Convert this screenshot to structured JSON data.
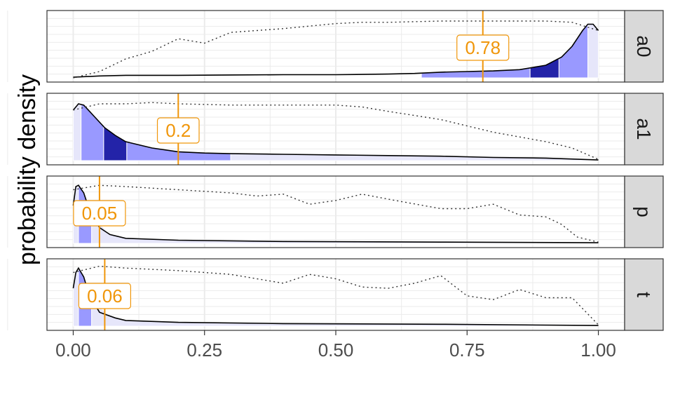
{
  "chart_data": {
    "type": "area",
    "ylabel": "probability density",
    "xlabel": "",
    "xlim": [
      -0.05,
      1.05
    ],
    "x_ticks": [
      {
        "value": 0.0,
        "label": "0.00"
      },
      {
        "value": 0.25,
        "label": "0.25"
      },
      {
        "value": 0.5,
        "label": "0.50"
      },
      {
        "value": 0.75,
        "label": "0.75"
      },
      {
        "value": 1.0,
        "label": "1.00"
      }
    ],
    "colors": {
      "light": "#e6e6fa",
      "mid": "#9999ff",
      "dark": "#2323a8",
      "median": "#f0960a",
      "strip_bg": "#d9d9d9",
      "grid": "#ebebeb"
    },
    "panels": [
      {
        "label": "a0",
        "median": 0.78,
        "median_label": "0.78",
        "ymax": 1.0,
        "density": [
          [
            0.0,
            0.01
          ],
          [
            0.05,
            0.03
          ],
          [
            0.1,
            0.04
          ],
          [
            0.2,
            0.04
          ],
          [
            0.3,
            0.045
          ],
          [
            0.4,
            0.05
          ],
          [
            0.5,
            0.05
          ],
          [
            0.6,
            0.06
          ],
          [
            0.65,
            0.07
          ],
          [
            0.7,
            0.09
          ],
          [
            0.75,
            0.1
          ],
          [
            0.8,
            0.11
          ],
          [
            0.85,
            0.13
          ],
          [
            0.9,
            0.2
          ],
          [
            0.93,
            0.33
          ],
          [
            0.95,
            0.5
          ],
          [
            0.97,
            0.75
          ],
          [
            0.98,
            0.85
          ],
          [
            0.99,
            0.85
          ],
          [
            1.0,
            0.75
          ]
        ],
        "cumulative": [
          [
            0.0,
            0.0
          ],
          [
            0.05,
            0.1
          ],
          [
            0.1,
            0.3
          ],
          [
            0.15,
            0.42
          ],
          [
            0.2,
            0.62
          ],
          [
            0.25,
            0.55
          ],
          [
            0.3,
            0.72
          ],
          [
            0.35,
            0.75
          ],
          [
            0.4,
            0.78
          ],
          [
            0.45,
            0.82
          ],
          [
            0.5,
            0.86
          ],
          [
            0.55,
            0.88
          ],
          [
            0.6,
            0.88
          ],
          [
            0.7,
            0.9
          ],
          [
            0.8,
            0.9
          ],
          [
            0.9,
            0.9
          ],
          [
            0.95,
            0.88
          ],
          [
            1.0,
            0.75
          ]
        ],
        "bands": [
          {
            "from": 0.663,
            "to": 0.87,
            "shade": "mid"
          },
          {
            "from": 0.87,
            "to": 0.925,
            "shade": "dark"
          },
          {
            "from": 0.925,
            "to": 0.98,
            "shade": "mid"
          },
          {
            "from": 0.98,
            "to": 1.0,
            "shade": "light"
          }
        ]
      },
      {
        "label": "a1",
        "median": 0.2,
        "median_label": "0.2",
        "ymax": 1.0,
        "density": [
          [
            0.0,
            0.8
          ],
          [
            0.01,
            0.9
          ],
          [
            0.02,
            0.88
          ],
          [
            0.04,
            0.7
          ],
          [
            0.06,
            0.52
          ],
          [
            0.08,
            0.4
          ],
          [
            0.1,
            0.3
          ],
          [
            0.15,
            0.2
          ],
          [
            0.2,
            0.14
          ],
          [
            0.25,
            0.12
          ],
          [
            0.3,
            0.11
          ],
          [
            0.4,
            0.1
          ],
          [
            0.5,
            0.09
          ],
          [
            0.6,
            0.08
          ],
          [
            0.7,
            0.07
          ],
          [
            0.8,
            0.05
          ],
          [
            0.9,
            0.04
          ],
          [
            1.0,
            0.01
          ]
        ],
        "cumulative": [
          [
            0.0,
            0.8
          ],
          [
            0.05,
            0.9
          ],
          [
            0.1,
            0.9
          ],
          [
            0.15,
            0.92
          ],
          [
            0.2,
            0.9
          ],
          [
            0.3,
            0.88
          ],
          [
            0.4,
            0.88
          ],
          [
            0.5,
            0.88
          ],
          [
            0.55,
            0.85
          ],
          [
            0.6,
            0.78
          ],
          [
            0.7,
            0.65
          ],
          [
            0.8,
            0.45
          ],
          [
            0.9,
            0.3
          ],
          [
            0.95,
            0.2
          ],
          [
            1.0,
            0.02
          ]
        ],
        "bands": [
          {
            "from": 0.0,
            "to": 0.015,
            "shade": "light"
          },
          {
            "from": 0.015,
            "to": 0.058,
            "shade": "mid"
          },
          {
            "from": 0.058,
            "to": 0.102,
            "shade": "dark"
          },
          {
            "from": 0.102,
            "to": 0.3,
            "shade": "mid"
          },
          {
            "from": 0.3,
            "to": 1.0,
            "shade": "light"
          }
        ]
      },
      {
        "label": "p",
        "median": 0.05,
        "median_label": "0.05",
        "ymax": 1.0,
        "density": [
          [
            0.0,
            0.6
          ],
          [
            0.005,
            0.9
          ],
          [
            0.01,
            0.92
          ],
          [
            0.02,
            0.8
          ],
          [
            0.03,
            0.55
          ],
          [
            0.05,
            0.25
          ],
          [
            0.07,
            0.14
          ],
          [
            0.1,
            0.08
          ],
          [
            0.2,
            0.05
          ],
          [
            0.4,
            0.03
          ],
          [
            0.7,
            0.02
          ],
          [
            1.0,
            0.01
          ]
        ],
        "cumulative": [
          [
            0.0,
            0.85
          ],
          [
            0.05,
            0.92
          ],
          [
            0.1,
            0.9
          ],
          [
            0.2,
            0.85
          ],
          [
            0.3,
            0.8
          ],
          [
            0.35,
            0.75
          ],
          [
            0.4,
            0.78
          ],
          [
            0.45,
            0.62
          ],
          [
            0.5,
            0.68
          ],
          [
            0.55,
            0.78
          ],
          [
            0.6,
            0.7
          ],
          [
            0.7,
            0.55
          ],
          [
            0.75,
            0.55
          ],
          [
            0.8,
            0.62
          ],
          [
            0.85,
            0.45
          ],
          [
            0.9,
            0.42
          ],
          [
            0.93,
            0.3
          ],
          [
            0.96,
            0.1
          ],
          [
            1.0,
            0.02
          ]
        ],
        "bands": [
          {
            "from": 0.0,
            "to": 0.01,
            "shade": "light"
          },
          {
            "from": 0.01,
            "to": 0.035,
            "shade": "mid"
          },
          {
            "from": 0.035,
            "to": 1.0,
            "shade": "light"
          }
        ]
      },
      {
        "label": "t",
        "median": 0.06,
        "median_label": "0.06",
        "ymax": 1.0,
        "density": [
          [
            0.0,
            0.6
          ],
          [
            0.005,
            0.85
          ],
          [
            0.01,
            0.92
          ],
          [
            0.02,
            0.78
          ],
          [
            0.03,
            0.5
          ],
          [
            0.05,
            0.22
          ],
          [
            0.08,
            0.13
          ],
          [
            0.1,
            0.09
          ],
          [
            0.2,
            0.06
          ],
          [
            0.4,
            0.04
          ],
          [
            0.7,
            0.03
          ],
          [
            1.0,
            0.01
          ]
        ],
        "cumulative": [
          [
            0.0,
            0.85
          ],
          [
            0.05,
            0.95
          ],
          [
            0.1,
            0.92
          ],
          [
            0.2,
            0.88
          ],
          [
            0.3,
            0.82
          ],
          [
            0.35,
            0.75
          ],
          [
            0.4,
            0.68
          ],
          [
            0.45,
            0.82
          ],
          [
            0.5,
            0.75
          ],
          [
            0.55,
            0.62
          ],
          [
            0.6,
            0.6
          ],
          [
            0.65,
            0.68
          ],
          [
            0.7,
            0.8
          ],
          [
            0.75,
            0.48
          ],
          [
            0.8,
            0.42
          ],
          [
            0.85,
            0.58
          ],
          [
            0.9,
            0.45
          ],
          [
            0.95,
            0.45
          ],
          [
            1.0,
            0.02
          ]
        ],
        "bands": [
          {
            "from": 0.0,
            "to": 0.01,
            "shade": "light"
          },
          {
            "from": 0.01,
            "to": 0.035,
            "shade": "mid"
          },
          {
            "from": 0.035,
            "to": 1.0,
            "shade": "light"
          }
        ]
      }
    ]
  }
}
